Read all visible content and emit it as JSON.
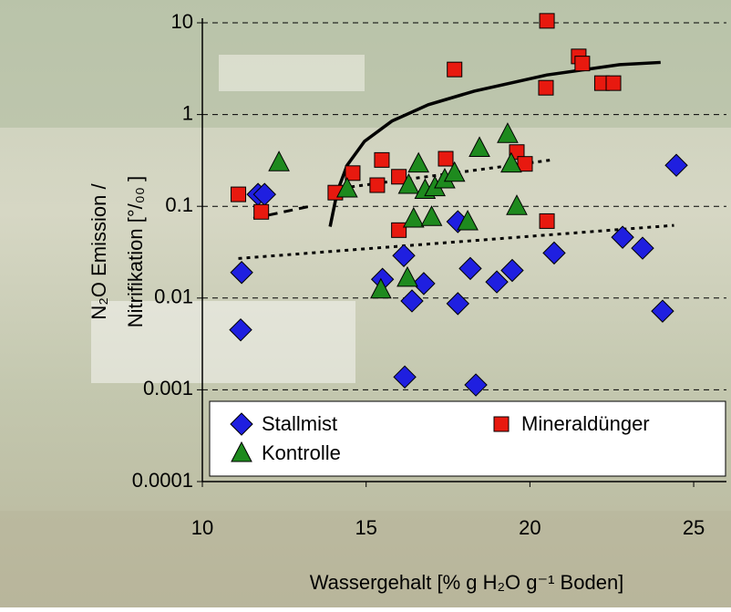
{
  "chart_data": {
    "type": "scatter",
    "x_label": "Wassergehalt [% g H₂O g⁻¹ Boden]",
    "y_label": [
      "N₂O Emission /",
      "Nitrifikation [°/₀₀ ]"
    ],
    "xlim": [
      10,
      26
    ],
    "xticks": [
      10,
      15,
      20,
      25
    ],
    "ylim": [
      0.0001,
      10
    ],
    "yticks": [
      0.0001,
      0.001,
      0.01,
      0.1,
      1,
      10
    ],
    "ylog": true,
    "grid": true,
    "legend": "bottom",
    "series": [
      {
        "name": "Stallmist",
        "color": "#1f1fe0",
        "marker": "diamond",
        "x": [
          11.17,
          11.2,
          11.7,
          11.9,
          15.5,
          16.15,
          16.4,
          16.76,
          16.18,
          17.8,
          17.8,
          18.18,
          18.35,
          18.99,
          19.46,
          20.74,
          22.83,
          23.44,
          24.05,
          24.47
        ],
        "values": [
          0.0045,
          0.019,
          0.135,
          0.135,
          0.016,
          0.029,
          0.0093,
          0.0144,
          0.00138,
          0.068,
          0.0087,
          0.021,
          0.00113,
          0.015,
          0.02,
          0.031,
          0.046,
          0.035,
          0.0072,
          0.28
        ]
      },
      {
        "name": "Mineraldünger",
        "color": "#e8190f",
        "marker": "square",
        "x": [
          11.1,
          11.8,
          14.06,
          14.59,
          15.48,
          15.34,
          16.0,
          16.0,
          17.43,
          17.7,
          19.6,
          19.85,
          20.52,
          20.49,
          20.52,
          21.49,
          21.6,
          22.2,
          22.55
        ],
        "values": [
          0.135,
          0.087,
          0.141,
          0.23,
          0.32,
          0.17,
          0.21,
          0.055,
          0.33,
          3.1,
          0.39,
          0.29,
          10.5,
          1.96,
          0.069,
          4.3,
          3.6,
          2.2,
          2.2
        ]
      },
      {
        "name": "Kontrolle",
        "color": "#1e8a1e",
        "marker": "triangle",
        "x": [
          12.34,
          14.42,
          15.45,
          16.26,
          16.3,
          16.6,
          16.45,
          16.8,
          17.0,
          17.1,
          17.4,
          17.7,
          18.1,
          18.46,
          19.32,
          19.43,
          19.6
        ],
        "values": [
          0.3,
          0.155,
          0.0123,
          0.0165,
          0.17,
          0.29,
          0.073,
          0.15,
          0.076,
          0.16,
          0.195,
          0.23,
          0.068,
          0.43,
          0.61,
          0.29,
          0.1
        ]
      }
    ],
    "trend_lines": [
      {
        "dash": "solid",
        "x": [
          13.9,
          14.12,
          14.42,
          14.95,
          15.79,
          16.9,
          18.3,
          20.52,
          22.74,
          23.99
        ],
        "values": [
          0.06,
          0.145,
          0.28,
          0.51,
          0.85,
          1.28,
          1.8,
          2.7,
          3.5,
          3.7
        ]
      },
      {
        "dash": "dashed",
        "x": [
          11.56,
          13.28
        ],
        "values": [
          0.074,
          0.1
        ]
      },
      {
        "dash": "dotted",
        "x": [
          14.54,
          20.66
        ],
        "values": [
          0.163,
          0.32
        ]
      },
      {
        "dash": "dotted",
        "x": [
          11.1,
          24.4
        ],
        "values": [
          0.027,
          0.062
        ]
      }
    ]
  }
}
